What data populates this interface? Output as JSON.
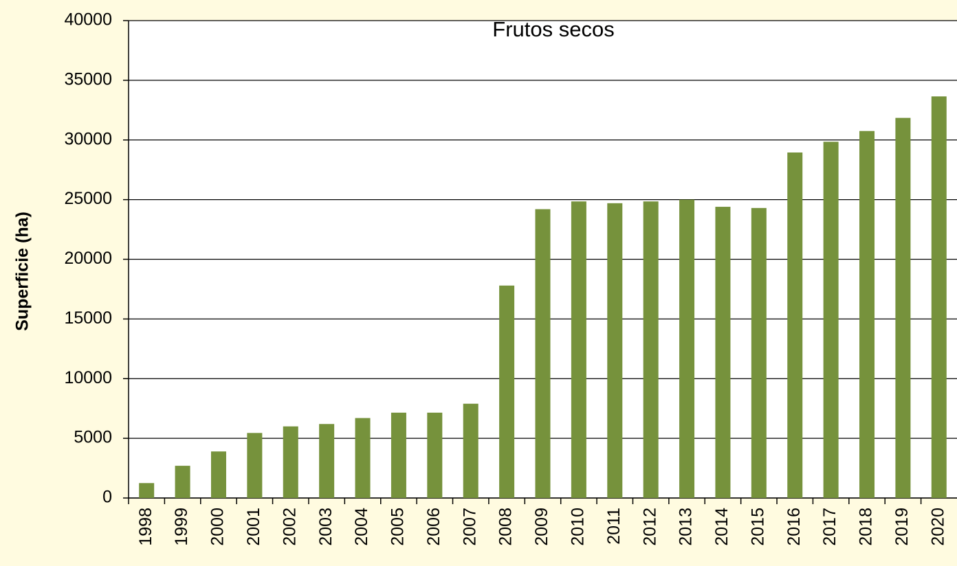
{
  "chart_data": {
    "type": "bar",
    "title": "Frutos secos",
    "y_label": "Superficie (ha)",
    "categories": [
      "1998",
      "1999",
      "2000",
      "2001",
      "2002",
      "2003",
      "2004",
      "2005",
      "2006",
      "2007",
      "2008",
      "2009",
      "2010",
      "2011",
      "2012",
      "2013",
      "2014",
      "2015",
      "2016",
      "2017",
      "2018",
      "2019",
      "2020"
    ],
    "values": [
      1250,
      2700,
      3900,
      5450,
      6000,
      6200,
      6700,
      7150,
      7150,
      7900,
      17800,
      24200,
      24850,
      24700,
      24850,
      25000,
      24400,
      24300,
      28950,
      29850,
      30750,
      31850,
      33650
    ],
    "color": "#76923c",
    "ylim": [
      0,
      40000
    ],
    "yticks": [
      0,
      5000,
      10000,
      15000,
      20000,
      25000,
      30000,
      35000,
      40000
    ],
    "grid": true
  }
}
